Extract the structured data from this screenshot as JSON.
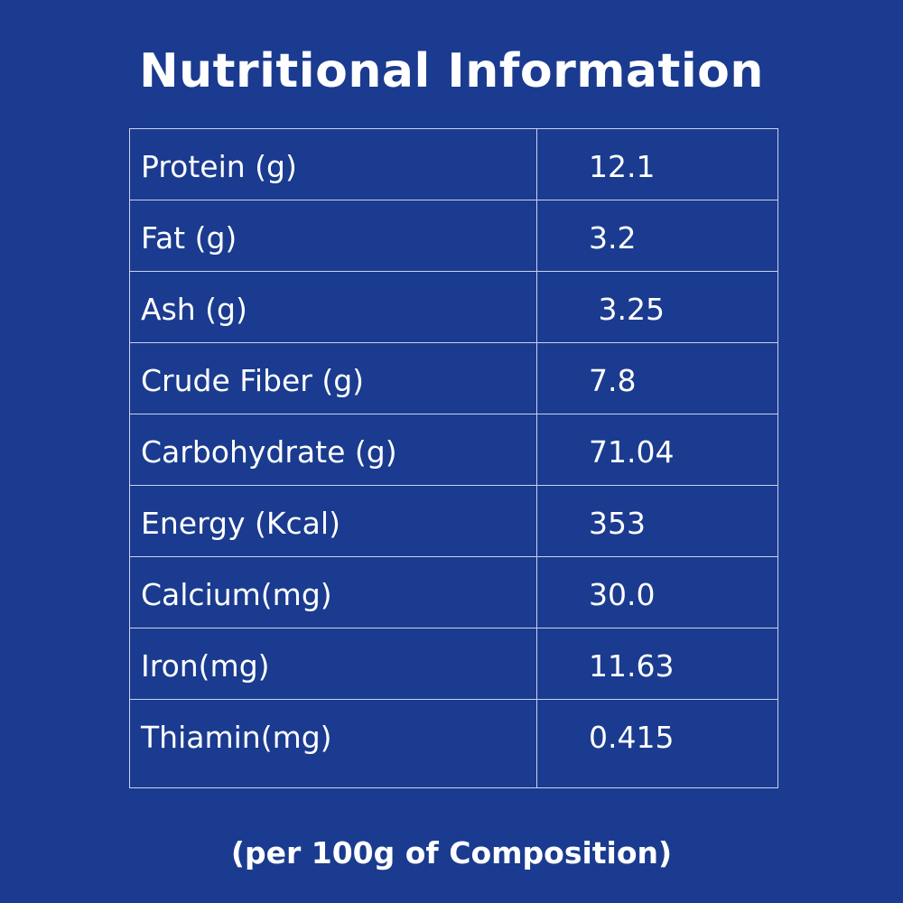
{
  "title": "Nutritional Information",
  "rows": [
    {
      "label": "Protein (g)",
      "value": "12.1"
    },
    {
      "label": "Fat (g)",
      "value": "3.2"
    },
    {
      "label": "Ash (g)",
      "value": " 3.25"
    },
    {
      "label": "Crude Fiber (g)",
      "value": "7.8"
    },
    {
      "label": "Carbohydrate (g)",
      "value": "71.04"
    },
    {
      "label": "Energy (Kcal)",
      "value": "353"
    },
    {
      "label": "Calcium(mg)",
      "value": "30.0"
    },
    {
      "label": "Iron(mg)",
      "value": "11.63"
    },
    {
      "label": "Thiamin(mg)",
      "value": "0.415"
    }
  ],
  "footnote": "(per 100g of Composition)",
  "colors": {
    "background": "#1a3b8f",
    "text": "#ffffff",
    "grid": "#c9d3ee"
  }
}
